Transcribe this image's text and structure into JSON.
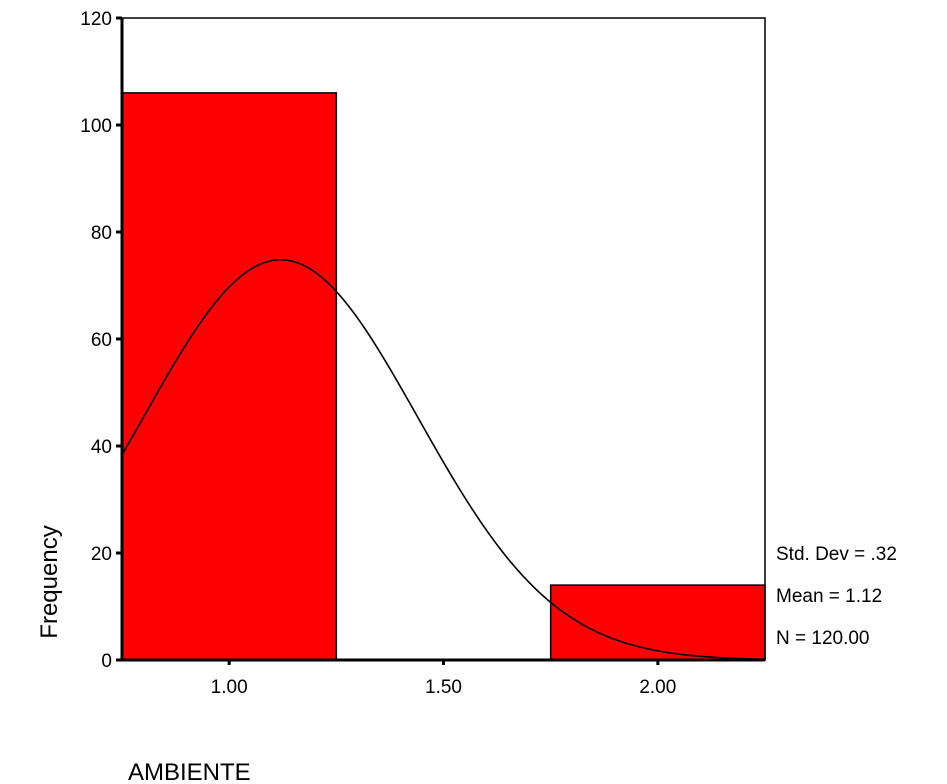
{
  "chart_data": {
    "type": "bar",
    "subtype": "histogram",
    "xlabel": "AMBIENTE",
    "ylabel": "Frequency",
    "xlim": [
      0.75,
      2.25
    ],
    "ylim": [
      0,
      120
    ],
    "bins": [
      {
        "start": 0.75,
        "end": 1.25,
        "value": 106
      },
      {
        "start": 1.25,
        "end": 1.75,
        "value": 0
      },
      {
        "start": 1.75,
        "end": 2.25,
        "value": 14
      }
    ],
    "x_ticks": [
      {
        "value": 1.0,
        "label": "1.00"
      },
      {
        "value": 1.5,
        "label": "1.50"
      },
      {
        "value": 2.0,
        "label": "2.00"
      }
    ],
    "y_ticks": [
      {
        "value": 0,
        "label": "0"
      },
      {
        "value": 20,
        "label": "20"
      },
      {
        "value": 40,
        "label": "40"
      },
      {
        "value": 60,
        "label": "60"
      },
      {
        "value": 80,
        "label": "80"
      },
      {
        "value": 100,
        "label": "100"
      },
      {
        "value": 120,
        "label": "120"
      }
    ],
    "normal_curve": {
      "mean": 1.12,
      "std_dev": 0.32,
      "n": 120,
      "bin_width": 0.5
    },
    "stats": {
      "std_dev_label": "Std. Dev = .32",
      "mean_label": "Mean = 1.12",
      "n_label": "N = 120.00"
    },
    "grid": false,
    "bar_color": "#ff0000",
    "bar_edge_color": "#000000",
    "curve_color": "#000000"
  }
}
